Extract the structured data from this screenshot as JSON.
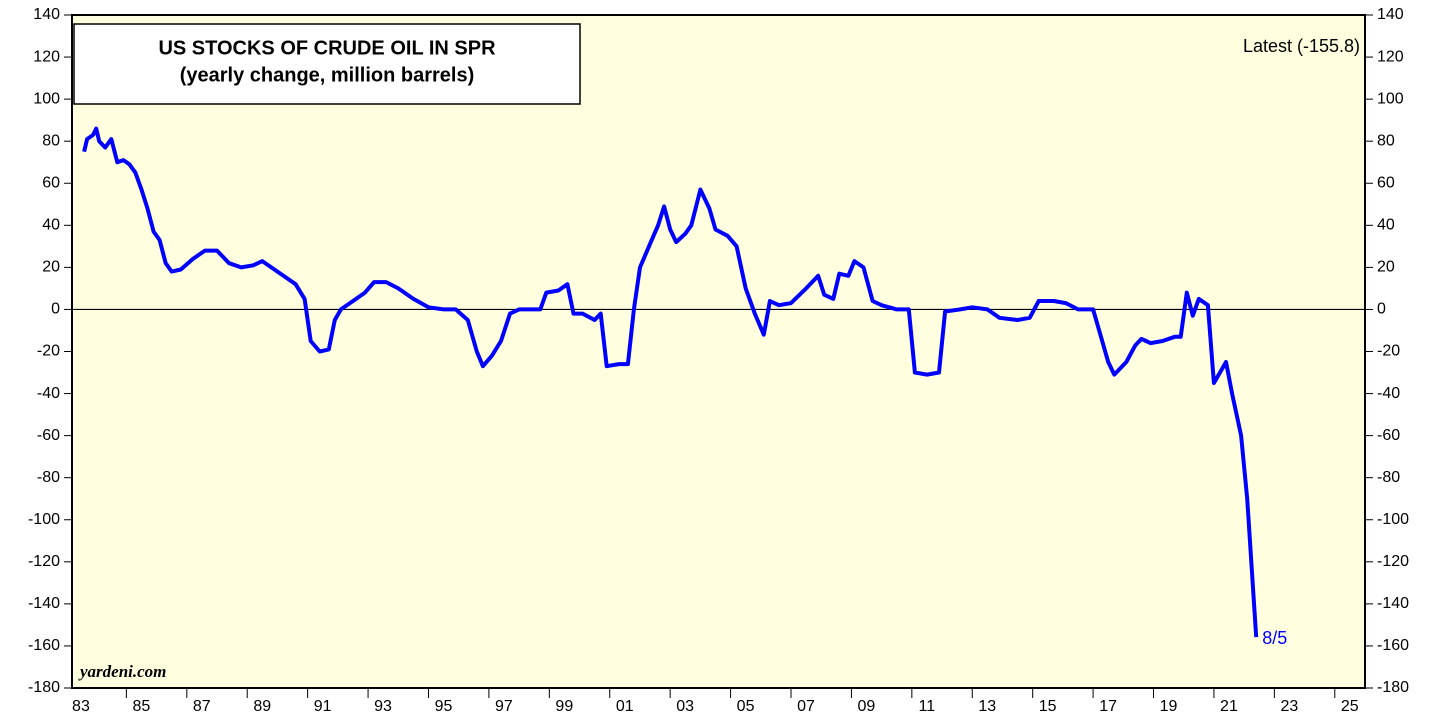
{
  "chart_data": {
    "type": "line",
    "title": "US STOCKS OF CRUDE OIL IN SPR",
    "subtitle": "(yearly change, million barrels)",
    "annotations": {
      "latest": "Latest (-155.8)",
      "last_date": "8/5",
      "source": "yardeni.com"
    },
    "x": [
      1983.6,
      1983.7,
      1983.9,
      1984.0,
      1984.1,
      1984.3,
      1984.5,
      1984.7,
      1984.9,
      1985.1,
      1985.3,
      1985.5,
      1985.7,
      1985.9,
      1986.1,
      1986.3,
      1986.5,
      1986.8,
      1987.2,
      1987.6,
      1988.0,
      1988.4,
      1988.8,
      1989.2,
      1989.5,
      1989.9,
      1990.3,
      1990.6,
      1990.9,
      1991.1,
      1991.4,
      1991.7,
      1991.9,
      1992.1,
      1992.5,
      1992.9,
      1993.2,
      1993.6,
      1994.0,
      1994.5,
      1995.0,
      1995.5,
      1995.9,
      1996.3,
      1996.6,
      1996.8,
      1997.1,
      1997.4,
      1997.7,
      1998.0,
      1998.4,
      1998.7,
      1998.9,
      1999.3,
      1999.6,
      1999.8,
      2000.1,
      2000.5,
      2000.7,
      2000.9,
      2001.3,
      2001.6,
      2001.8,
      2002.0,
      2002.3,
      2002.6,
      2002.8,
      2003.0,
      2003.2,
      2003.5,
      2003.7,
      2004.0,
      2004.3,
      2004.5,
      2004.9,
      2005.2,
      2005.5,
      2005.8,
      2006.1,
      2006.3,
      2006.6,
      2007.0,
      2007.5,
      2007.9,
      2008.1,
      2008.4,
      2008.6,
      2008.9,
      2009.1,
      2009.4,
      2009.7,
      2010.0,
      2010.5,
      2010.9,
      2011.1,
      2011.5,
      2011.9,
      2012.1,
      2012.6,
      2013.0,
      2013.5,
      2013.9,
      2014.5,
      2014.9,
      2015.2,
      2015.7,
      2016.1,
      2016.5,
      2017.0,
      2017.3,
      2017.5,
      2017.7,
      2018.1,
      2018.4,
      2018.6,
      2018.9,
      2019.3,
      2019.7,
      2019.9,
      2020.1,
      2020.3,
      2020.5,
      2020.8,
      2021.0,
      2021.2,
      2021.4,
      2021.6,
      2021.9,
      2022.1,
      2022.4
    ],
    "series": [
      {
        "name": "US stocks of crude oil in SPR",
        "color": "#0000ff",
        "values": [
          75,
          81,
          83,
          86,
          80,
          77,
          81,
          70,
          71,
          69,
          65,
          57,
          48,
          37,
          33,
          22,
          18,
          19,
          24,
          28,
          28,
          22,
          20,
          21,
          23,
          19,
          15,
          12,
          5,
          -15,
          -20,
          -19,
          -5,
          0,
          4,
          8,
          13,
          13,
          10,
          5,
          1,
          0,
          0,
          -5,
          -20,
          -27,
          -22,
          -15,
          -2,
          0,
          0,
          0,
          8,
          9,
          12,
          -2,
          -2,
          -5,
          -2,
          -27,
          -26,
          -26,
          0,
          20,
          30,
          40,
          49,
          38,
          32,
          36,
          40,
          57,
          48,
          38,
          35,
          30,
          10,
          -2,
          -12,
          4,
          2,
          3,
          10,
          16,
          7,
          5,
          17,
          16,
          23,
          20,
          4,
          2,
          0,
          0,
          -30,
          -31,
          -30,
          -1,
          0,
          1,
          0,
          -4,
          -5,
          -4,
          4,
          4,
          3,
          0,
          0,
          -15,
          -25,
          -31,
          -25,
          -17,
          -14,
          -16,
          -15,
          -13,
          -13,
          8,
          -3,
          5,
          2,
          -35,
          -30,
          -25,
          -40,
          -60,
          -90,
          -155.8
        ]
      }
    ],
    "xlim": [
      1983.2,
      2026
    ],
    "xticks": [
      {
        "value": 1983,
        "label": "83"
      },
      {
        "value": 1985,
        "label": "85"
      },
      {
        "value": 1987,
        "label": "87"
      },
      {
        "value": 1989,
        "label": "89"
      },
      {
        "value": 1991,
        "label": "91"
      },
      {
        "value": 1993,
        "label": "93"
      },
      {
        "value": 1995,
        "label": "95"
      },
      {
        "value": 1997,
        "label": "97"
      },
      {
        "value": 1999,
        "label": "99"
      },
      {
        "value": 2001,
        "label": "01"
      },
      {
        "value": 2003,
        "label": "03"
      },
      {
        "value": 2005,
        "label": "05"
      },
      {
        "value": 2007,
        "label": "07"
      },
      {
        "value": 2009,
        "label": "09"
      },
      {
        "value": 2011,
        "label": "11"
      },
      {
        "value": 2013,
        "label": "13"
      },
      {
        "value": 2015,
        "label": "15"
      },
      {
        "value": 2017,
        "label": "17"
      },
      {
        "value": 2019,
        "label": "19"
      },
      {
        "value": 2021,
        "label": "21"
      },
      {
        "value": 2023,
        "label": "23"
      },
      {
        "value": 2025,
        "label": "25"
      }
    ],
    "ylim": [
      -180,
      140
    ],
    "yticks": [
      -180,
      -160,
      -140,
      -120,
      -100,
      -80,
      -60,
      -40,
      -20,
      0,
      20,
      40,
      60,
      80,
      100,
      120,
      140
    ],
    "zero_line": true
  }
}
